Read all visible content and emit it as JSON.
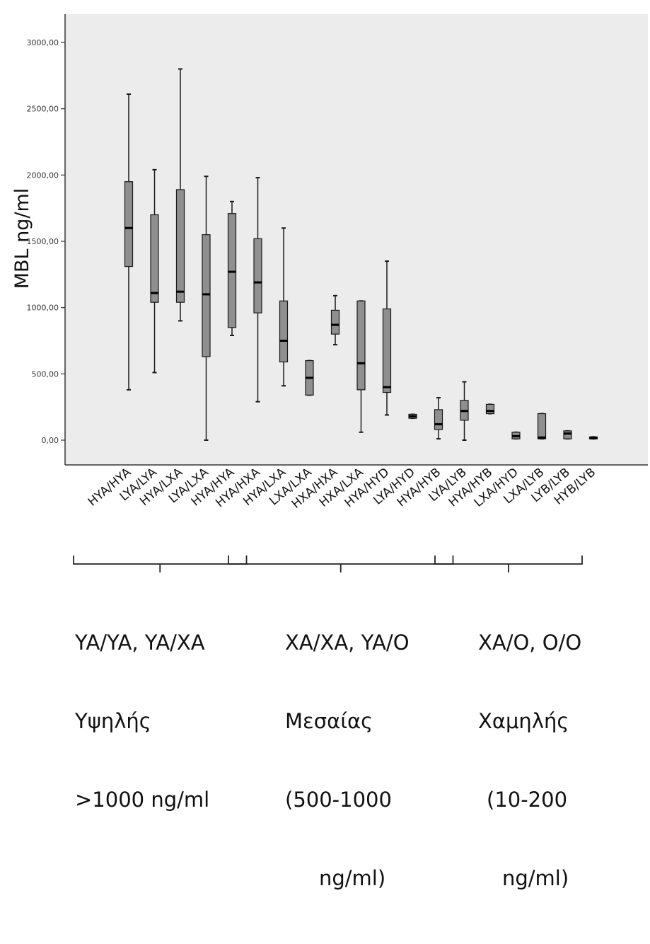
{
  "chart_data": {
    "type": "boxplot",
    "ylabel": "MBL ng/ml",
    "xlabel": "",
    "ylim": [
      -180,
      3340
    ],
    "yticks": [
      0,
      500,
      1000,
      1500,
      2000,
      2500,
      3000
    ],
    "ytick_labels": [
      "0,00",
      "500,00",
      "1000,00",
      "1500,00",
      "2000,00",
      "2500,00",
      "3000,00"
    ],
    "grid": false,
    "categories": [
      "HYA/HYA",
      "LYA/LYA",
      "HYA/LXA",
      "LYA/LXA",
      "HYA/HYA",
      "HYA/HXA",
      "HYA/LXA",
      "LXA/LXA",
      "HXA/HXA",
      "HXA/LXA",
      "HYA/HYD",
      "LYA/HYD",
      "HYA/HYB",
      "LYA/LYB",
      "HYA/HYB",
      "LXA/HYD",
      "LXA/LYB",
      "LYB/LYB",
      "HYB/LYB"
    ],
    "boxes": [
      {
        "whisker_low": 380,
        "q1": 1310,
        "median": 1600,
        "q3": 1950,
        "whisker_high": 2610
      },
      {
        "whisker_low": 510,
        "q1": 1040,
        "median": 1110,
        "q3": 1700,
        "whisker_high": 2040
      },
      {
        "whisker_low": 900,
        "q1": 1040,
        "median": 1120,
        "q3": 1890,
        "whisker_high": 2800
      },
      {
        "whisker_low": 0,
        "q1": 630,
        "median": 1100,
        "q3": 1550,
        "whisker_high": 1990
      },
      {
        "whisker_low": 790,
        "q1": 850,
        "median": 1270,
        "q3": 1710,
        "whisker_high": 1800
      },
      {
        "whisker_low": 290,
        "q1": 960,
        "median": 1190,
        "q3": 1520,
        "whisker_high": 1980
      },
      {
        "whisker_low": 410,
        "q1": 590,
        "median": 750,
        "q3": 1050,
        "whisker_high": 1600
      },
      {
        "whisker_low": 340,
        "q1": 340,
        "median": 470,
        "q3": 600,
        "whisker_high": 600
      },
      {
        "whisker_low": 720,
        "q1": 800,
        "median": 870,
        "q3": 980,
        "whisker_high": 1090
      },
      {
        "whisker_low": 60,
        "q1": 380,
        "median": 580,
        "q3": 1050,
        "whisker_high": 1050
      },
      {
        "whisker_low": 190,
        "q1": 360,
        "median": 400,
        "q3": 990,
        "whisker_high": 1350
      },
      {
        "whisker_low": 165,
        "q1": 165,
        "median": 180,
        "q3": 195,
        "whisker_high": 195
      },
      {
        "whisker_low": 10,
        "q1": 80,
        "median": 120,
        "q3": 230,
        "whisker_high": 320
      },
      {
        "whisker_low": 0,
        "q1": 150,
        "median": 220,
        "q3": 300,
        "whisker_high": 440
      },
      {
        "whisker_low": 200,
        "q1": 200,
        "median": 220,
        "q3": 270,
        "whisker_high": 270
      },
      {
        "whisker_low": 10,
        "q1": 10,
        "median": 30,
        "q3": 60,
        "whisker_high": 60
      },
      {
        "whisker_low": 10,
        "q1": 10,
        "median": 20,
        "q3": 200,
        "whisker_high": 200
      },
      {
        "whisker_low": 10,
        "q1": 10,
        "median": 50,
        "q3": 70,
        "whisker_high": 70
      },
      {
        "whisker_low": 10,
        "q1": 10,
        "median": 15,
        "q3": 25,
        "whisker_high": 25
      }
    ],
    "groups": [
      {
        "from_index": 0,
        "to_index": 5,
        "lines": [
          "YA/YA, YA/XA",
          "Υψηλής",
          ">1000 ng/ml"
        ]
      },
      {
        "from_index": 6,
        "to_index": 13,
        "lines": [
          "XA/XA, YA/O",
          "Μεσαίας",
          "(500-1000",
          "ng/ml)"
        ]
      },
      {
        "from_index": 14,
        "to_index": 18,
        "lines": [
          "XA/O, O/O",
          "Χαμηλής",
          "(10-200",
          "ng/ml)"
        ]
      }
    ],
    "colors": {
      "plot_background": "#ececec",
      "box_fill": "#8f8f8f",
      "box_stroke": "#1a1a1a",
      "axis": "#333333"
    }
  }
}
